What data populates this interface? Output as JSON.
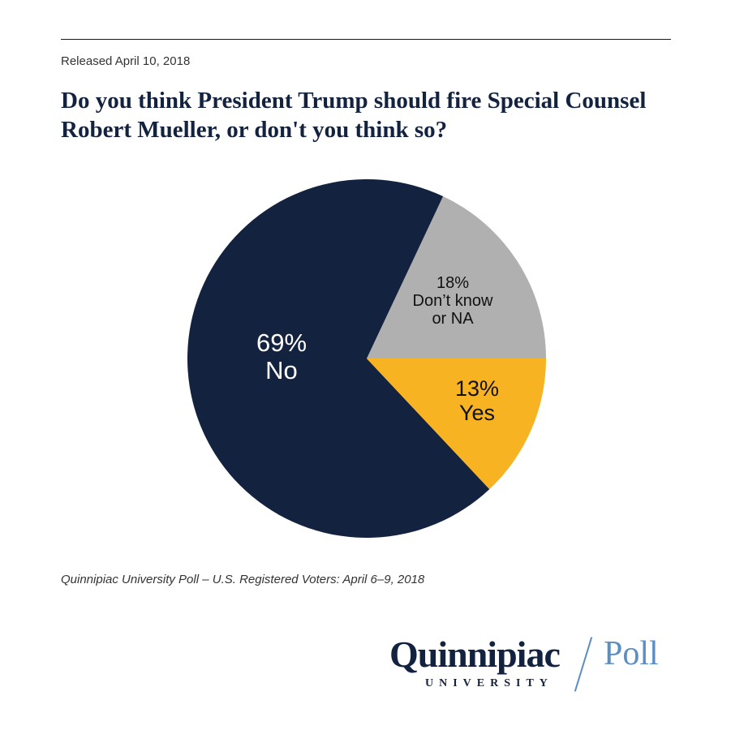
{
  "header": {
    "released": "Released April 10, 2018",
    "question_line1": "Do you think President Trump should fire Special Counsel",
    "question_line2": "Robert Mueller, or don't you think so?"
  },
  "chart_data": {
    "type": "pie",
    "title": "Do you think President Trump should fire Special Counsel Robert Mueller, or don't you think so?",
    "slices": [
      {
        "key": "no",
        "label": "No",
        "value": 69,
        "value_text": "69%",
        "label_lines": [
          "69%",
          "No"
        ],
        "color": "#13233f",
        "text_color": "#ffffff"
      },
      {
        "key": "dk",
        "label": "Don’t know or NA",
        "value": 18,
        "value_text": "18%",
        "label_lines": [
          "18%",
          "Don’t know",
          "or NA"
        ],
        "color": "#b0b0b0",
        "text_color": "#111111"
      },
      {
        "key": "yes",
        "label": "Yes",
        "value": 13,
        "value_text": "13%",
        "label_lines": [
          "13%",
          "Yes"
        ],
        "color": "#f8b323",
        "text_color": "#111111"
      }
    ],
    "unit": "%"
  },
  "footer": {
    "source": "Quinnipiac University Poll – U.S. Registered Voters: April 6–9, 2018"
  },
  "logo": {
    "main": "Quinnipiac",
    "poll": "Poll",
    "university": "UNIVERSITY",
    "main_color": "#13233f",
    "accent_color": "#5b8ec4"
  }
}
